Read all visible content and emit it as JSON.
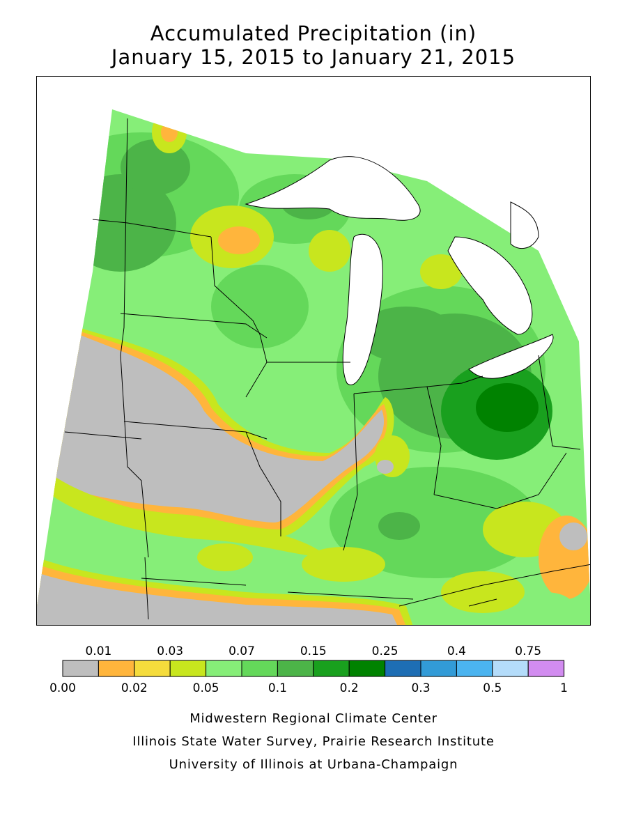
{
  "title": {
    "line1": "Accumulated Precipitation (in)",
    "line2": "January 15, 2015 to January 21, 2015"
  },
  "legend": {
    "bins": [
      {
        "color": "#bebebe"
      },
      {
        "color": "#ffb53c"
      },
      {
        "color": "#f5dc3c"
      },
      {
        "color": "#c8e61e"
      },
      {
        "color": "#86ee78"
      },
      {
        "color": "#64d85a"
      },
      {
        "color": "#4cb448"
      },
      {
        "color": "#19a01e"
      },
      {
        "color": "#008200"
      },
      {
        "color": "#1e6eb4"
      },
      {
        "color": "#329bd7"
      },
      {
        "color": "#4bb4f0"
      },
      {
        "color": "#b4dcfa"
      },
      {
        "color": "#d28cf0"
      }
    ],
    "top_labels": [
      "0.01",
      "0.03",
      "0.07",
      "0.15",
      "0.25",
      "0.4",
      "0.75"
    ],
    "bottom_labels": [
      "0.00",
      "0.02",
      "0.05",
      "0.1",
      "0.2",
      "0.3",
      "0.5",
      "1"
    ]
  },
  "credits": [
    "Midwestern Regional Climate Center",
    "Illinois State Water Survey, Prairie Research Institute",
    "University of Illinois at Urbana-Champaign"
  ]
}
